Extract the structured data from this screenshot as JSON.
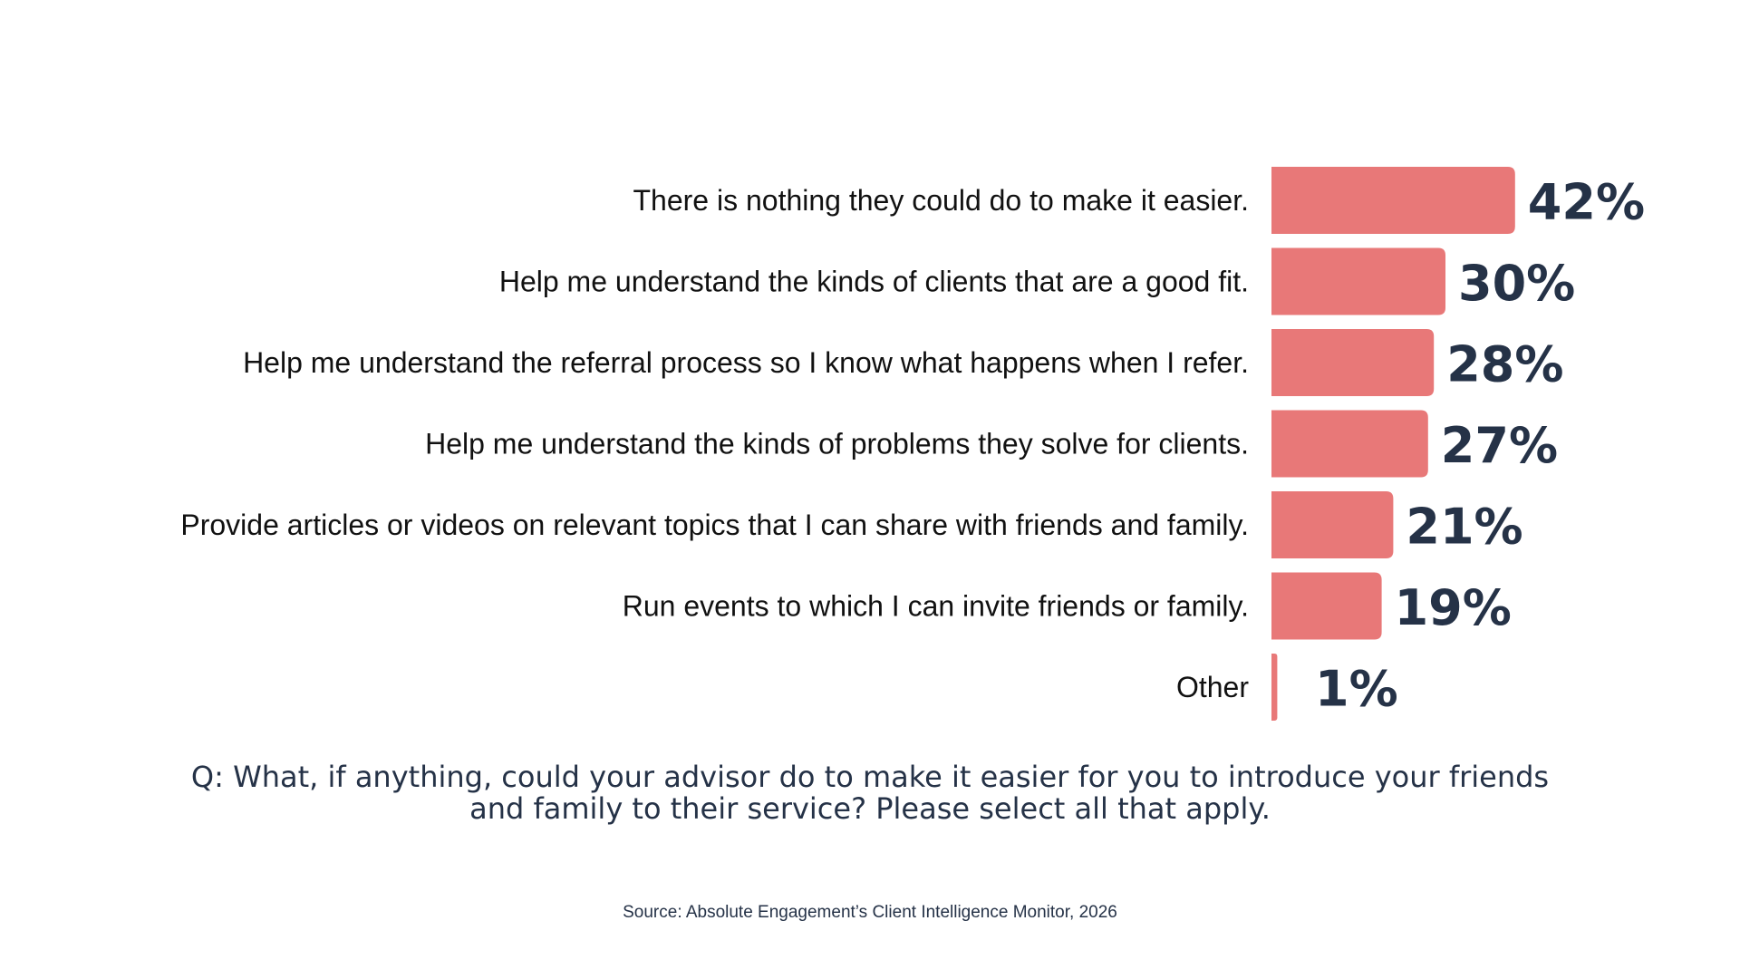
{
  "chart_data": {
    "type": "bar",
    "orientation": "horizontal",
    "categories": [
      "There is nothing they could do to make it easier.",
      "Help me understand the kinds of clients that are a good fit.",
      "Help me understand the referral process so I know what happens when I refer.",
      "Help me understand the kinds of problems they solve for clients.",
      "Provide articles or videos on relevant topics that I can share with friends and family.",
      "Run events to which I can invite friends or family.",
      "Other"
    ],
    "values": [
      42,
      30,
      28,
      27,
      21,
      19,
      1
    ],
    "value_labels": [
      "42%",
      "30%",
      "28%",
      "27%",
      "21%",
      "19%",
      "1%"
    ],
    "unit": "%",
    "bar_color": "#E87878",
    "value_label_color": "#253247",
    "grid": false,
    "legend": "none"
  },
  "question": {
    "line1": "Q: What, if anything, could your advisor do to make it easier for you to introduce your friends",
    "line2": "and family to their service? Please select all that apply."
  },
  "source": "Source: Absolute Engagement’s Client Intelligence Monitor, 2026"
}
